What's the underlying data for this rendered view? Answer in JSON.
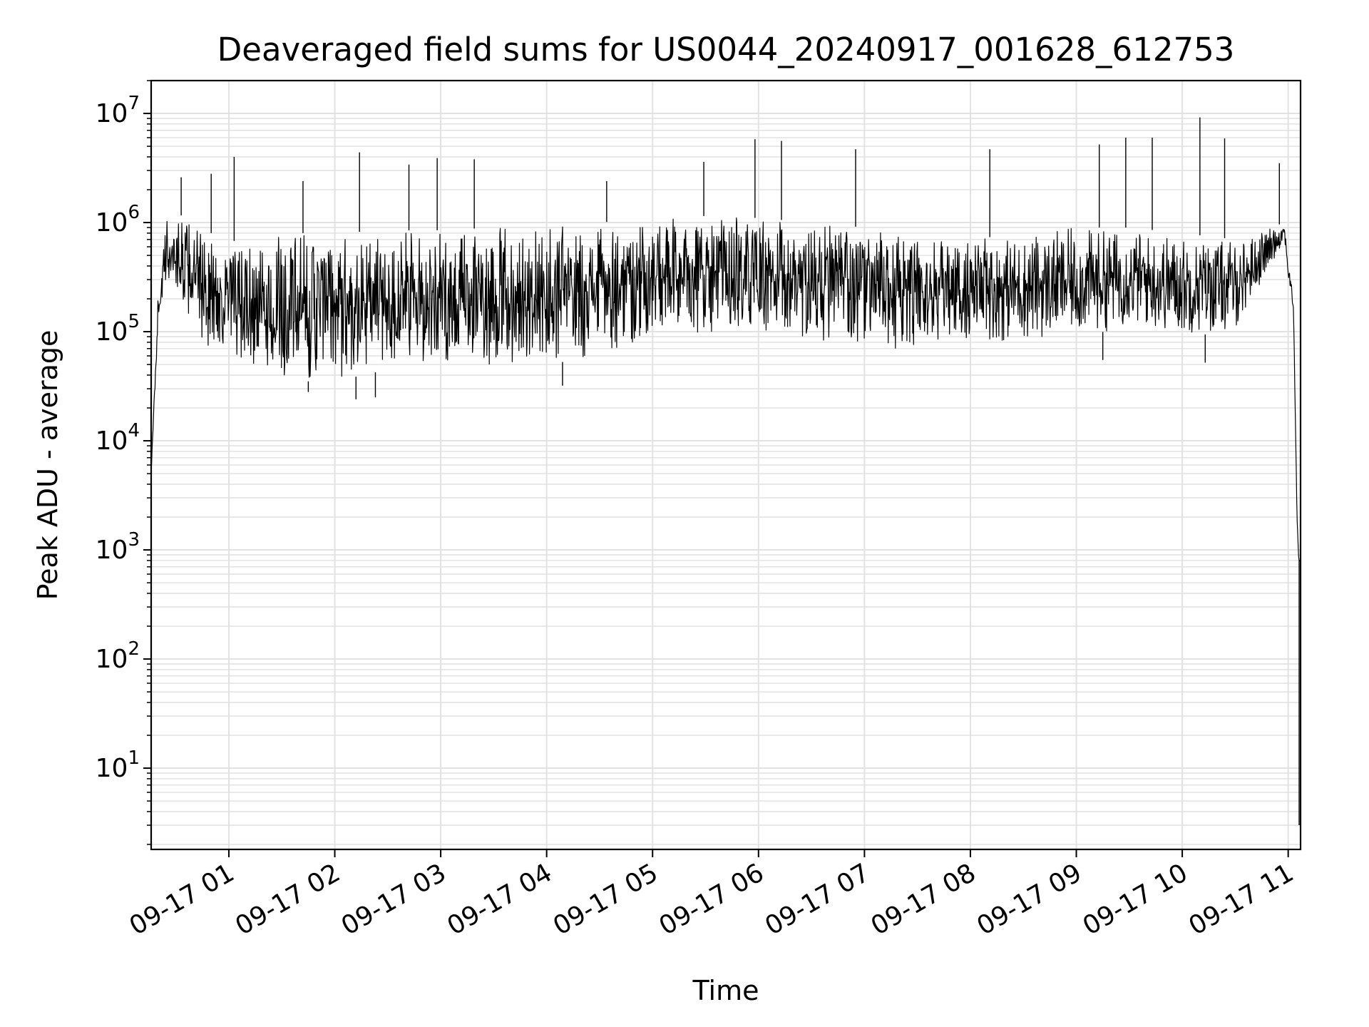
{
  "chart_data": {
    "type": "line",
    "title": "Deaveraged field sums for US0044_20240917_001628_612753",
    "xlabel": "Time",
    "ylabel": "Peak ADU - average",
    "yscale": "log",
    "ylim": [
      1.8,
      20000000
    ],
    "xlim": [
      "2024-09-17 00:16",
      "2024-09-17 11:07"
    ],
    "grid": true,
    "line_color": "#000000",
    "grid_color": "#e2e2e2",
    "x_ticks": [
      {
        "value": "2024-09-17 01:00",
        "label": "09-17 01"
      },
      {
        "value": "2024-09-17 02:00",
        "label": "09-17 02"
      },
      {
        "value": "2024-09-17 03:00",
        "label": "09-17 03"
      },
      {
        "value": "2024-09-17 04:00",
        "label": "09-17 04"
      },
      {
        "value": "2024-09-17 05:00",
        "label": "09-17 05"
      },
      {
        "value": "2024-09-17 06:00",
        "label": "09-17 06"
      },
      {
        "value": "2024-09-17 07:00",
        "label": "09-17 07"
      },
      {
        "value": "2024-09-17 08:00",
        "label": "09-17 08"
      },
      {
        "value": "2024-09-17 09:00",
        "label": "09-17 09"
      },
      {
        "value": "2024-09-17 10:00",
        "label": "09-17 10"
      },
      {
        "value": "2024-09-17 11:00",
        "label": "09-17 11"
      }
    ],
    "y_ticks": [
      {
        "value": 10,
        "base": "10",
        "exp": "1"
      },
      {
        "value": 100,
        "base": "10",
        "exp": "2"
      },
      {
        "value": 1000,
        "base": "10",
        "exp": "3"
      },
      {
        "value": 10000,
        "base": "10",
        "exp": "4"
      },
      {
        "value": 100000,
        "base": "10",
        "exp": "5"
      },
      {
        "value": 1000000,
        "base": "10",
        "exp": "6"
      },
      {
        "value": 10000000,
        "base": "10",
        "exp": "7"
      }
    ],
    "series": [
      {
        "envelope": {
          "time": [
            "2024-09-17 00:16",
            "2024-09-17 00:20",
            "2024-09-17 00:25",
            "2024-09-17 00:30",
            "2024-09-17 00:40",
            "2024-09-17 00:50",
            "2024-09-17 01:00",
            "2024-09-17 01:15",
            "2024-09-17 01:30",
            "2024-09-17 02:00",
            "2024-09-17 02:30",
            "2024-09-17 03:00",
            "2024-09-17 03:30",
            "2024-09-17 04:00",
            "2024-09-17 04:30",
            "2024-09-17 05:00",
            "2024-09-17 05:30",
            "2024-09-17 06:00",
            "2024-09-17 06:30",
            "2024-09-17 07:00",
            "2024-09-17 07:30",
            "2024-09-17 08:00",
            "2024-09-17 08:30",
            "2024-09-17 09:00",
            "2024-09-17 09:30",
            "2024-09-17 10:00",
            "2024-09-17 10:30",
            "2024-09-17 10:50",
            "2024-09-17 10:58",
            "2024-09-17 11:00",
            "2024-09-17 11:03",
            "2024-09-17 11:05",
            "2024-09-17 11:06"
          ],
          "upper": [
            5000,
            250000,
            1200000,
            1300000,
            900000,
            800000,
            700000,
            600000,
            800000,
            800000,
            850000,
            850000,
            900000,
            900000,
            1000000,
            1100000,
            1150000,
            1100000,
            1000000,
            900000,
            700000,
            700000,
            800000,
            900000,
            900000,
            800000,
            700000,
            900000,
            1000000,
            450000,
            200000,
            2000,
            800
          ],
          "lower": [
            5000,
            120000,
            250000,
            200000,
            120000,
            60000,
            50000,
            40000,
            35000,
            35000,
            45000,
            50000,
            50000,
            50000,
            60000,
            80000,
            100000,
            90000,
            80000,
            70000,
            70000,
            80000,
            80000,
            90000,
            110000,
            90000,
            100000,
            400000,
            700000,
            300000,
            150000,
            2000,
            800
          ]
        },
        "spikes": [
          {
            "time": "2024-09-17 00:33",
            "value": 2600000
          },
          {
            "time": "2024-09-17 00:50",
            "value": 2800000
          },
          {
            "time": "2024-09-17 01:03",
            "value": 4000000
          },
          {
            "time": "2024-09-17 01:42",
            "value": 2400000
          },
          {
            "time": "2024-09-17 02:14",
            "value": 4400000
          },
          {
            "time": "2024-09-17 02:42",
            "value": 3400000
          },
          {
            "time": "2024-09-17 02:58",
            "value": 3900000
          },
          {
            "time": "2024-09-17 03:19",
            "value": 3800000
          },
          {
            "time": "2024-09-17 04:34",
            "value": 2400000
          },
          {
            "time": "2024-09-17 05:29",
            "value": 3600000
          },
          {
            "time": "2024-09-17 05:58",
            "value": 5800000
          },
          {
            "time": "2024-09-17 06:13",
            "value": 5600000
          },
          {
            "time": "2024-09-17 06:55",
            "value": 4700000
          },
          {
            "time": "2024-09-17 08:11",
            "value": 4700000
          },
          {
            "time": "2024-09-17 09:13",
            "value": 5200000
          },
          {
            "time": "2024-09-17 09:28",
            "value": 6000000
          },
          {
            "time": "2024-09-17 09:43",
            "value": 6000000
          },
          {
            "time": "2024-09-17 10:10",
            "value": 9200000
          },
          {
            "time": "2024-09-17 10:24",
            "value": 5900000
          },
          {
            "time": "2024-09-17 10:55",
            "value": 3500000
          }
        ],
        "dips": [
          {
            "time": "2024-09-17 01:45",
            "value": 28000
          },
          {
            "time": "2024-09-17 02:12",
            "value": 24000
          },
          {
            "time": "2024-09-17 02:23",
            "value": 25000
          },
          {
            "time": "2024-09-17 04:09",
            "value": 32000
          },
          {
            "time": "2024-09-17 09:15",
            "value": 55000
          },
          {
            "time": "2024-09-17 10:13",
            "value": 52000
          }
        ]
      }
    ]
  }
}
